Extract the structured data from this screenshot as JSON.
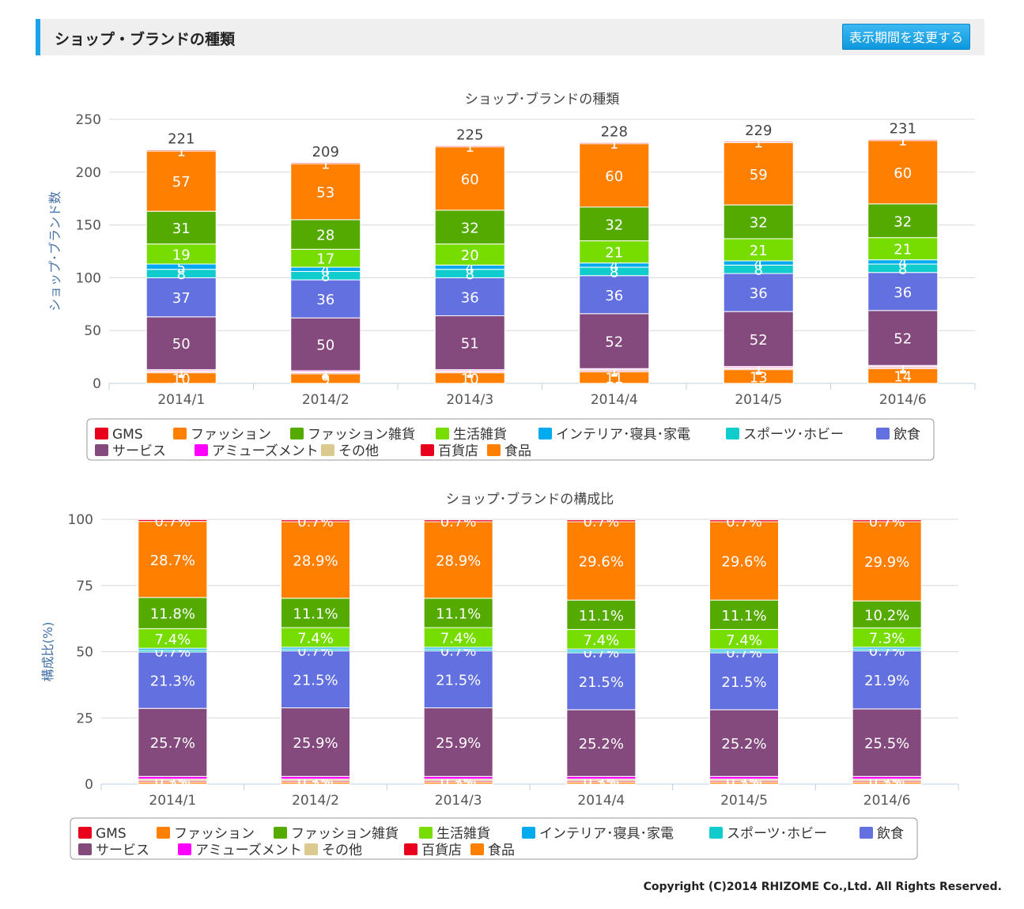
{
  "header": {
    "title": "ショップ・ブランドの種類",
    "period_button": "表示期間を変更する"
  },
  "legend": [
    {
      "name": "GMS",
      "color": "#e8001c"
    },
    {
      "name": "ファッション",
      "color": "#ff8000"
    },
    {
      "name": "ファッション雑貨",
      "color": "#55aa00"
    },
    {
      "name": "生活雑貨",
      "color": "#77dd00"
    },
    {
      "name": "インテリア･寝具･家電",
      "color": "#00aaee"
    },
    {
      "name": "スポーツ･ホビー",
      "color": "#11cccc"
    },
    {
      "name": "飲食",
      "color": "#6270e0"
    },
    {
      "name": "サービス",
      "color": "#844a7d"
    },
    {
      "name": "アミューズメント",
      "color": "#ff00ff"
    },
    {
      "name": "その他",
      "color": "#dcc990"
    },
    {
      "name": "百貨店",
      "color": "#e8001c"
    },
    {
      "name": "食品",
      "color": "#ff8000"
    }
  ],
  "chart_data": [
    {
      "type": "bar",
      "stacked": true,
      "title": "ショップ･ブランドの種類",
      "ylabel": "ショップ･ブランド数",
      "ylim": [
        0,
        250
      ],
      "yticks": [
        "0",
        "50",
        "100",
        "150",
        "200",
        "250"
      ],
      "categories": [
        "2014/1",
        "2014/2",
        "2014/3",
        "2014/4",
        "2014/5",
        "2014/6"
      ],
      "totals": [
        "221",
        "209",
        "225",
        "228",
        "229",
        "231"
      ],
      "series": [
        {
          "name": "食品",
          "values": [
            10,
            9,
            10,
            11,
            13,
            14
          ],
          "labels": [
            "10",
            "9",
            "10",
            "11",
            "13",
            "14"
          ]
        },
        {
          "name": "百貨店",
          "values": [
            1,
            1,
            1,
            1,
            1,
            1
          ],
          "labels": [
            "1",
            "1",
            "1",
            "1",
            "1",
            "1"
          ]
        },
        {
          "name": "その他",
          "values": [
            1,
            1,
            1,
            1,
            1,
            1
          ],
          "labels": [
            "1",
            "1",
            "1",
            "1",
            "1",
            "1"
          ]
        },
        {
          "name": "アミューズメント",
          "values": [
            1,
            1,
            1,
            1,
            1,
            1
          ],
          "labels": [
            "1",
            "1",
            "1",
            "1",
            "1",
            "1"
          ]
        },
        {
          "name": "サービス",
          "values": [
            50,
            50,
            51,
            52,
            52,
            52
          ],
          "labels": [
            "50",
            "50",
            "51",
            "52",
            "52",
            "52"
          ]
        },
        {
          "name": "飲食",
          "values": [
            37,
            36,
            36,
            36,
            36,
            36
          ],
          "labels": [
            "37",
            "36",
            "36",
            "36",
            "36",
            "36"
          ]
        },
        {
          "name": "スポーツ･ホビー",
          "values": [
            8,
            8,
            8,
            8,
            8,
            8
          ],
          "labels": [
            "8",
            "8",
            "8",
            "8",
            "8",
            "8"
          ]
        },
        {
          "name": "インテリア･寝具･家電",
          "values": [
            5,
            4,
            4,
            4,
            4,
            4
          ],
          "labels": [
            "5",
            "4",
            "4",
            "4",
            "4",
            "4"
          ]
        },
        {
          "name": "生活雑貨",
          "values": [
            19,
            17,
            20,
            21,
            21,
            21
          ],
          "labels": [
            "19",
            "17",
            "20",
            "21",
            "21",
            "21"
          ]
        },
        {
          "name": "ファッション雑貨",
          "values": [
            31,
            28,
            32,
            32,
            32,
            32
          ],
          "labels": [
            "31",
            "28",
            "32",
            "32",
            "32",
            "32"
          ]
        },
        {
          "name": "ファッション",
          "values": [
            57,
            53,
            60,
            60,
            59,
            60
          ],
          "labels": [
            "57",
            "53",
            "60",
            "60",
            "59",
            "60"
          ]
        },
        {
          "name": "GMS",
          "values": [
            1,
            1,
            1,
            1,
            1,
            1
          ],
          "labels": [
            "1",
            "1",
            "1",
            "1",
            "1",
            "1"
          ]
        }
      ]
    },
    {
      "type": "bar",
      "stacked": true,
      "title": "ショップ･ブランドの構成比",
      "ylabel": "構成比(%)",
      "ylim": [
        0,
        100
      ],
      "yticks": [
        "0",
        "25",
        "50",
        "75",
        "100"
      ],
      "categories": [
        "2014/1",
        "2014/2",
        "2014/3",
        "2014/4",
        "2014/5",
        "2014/6"
      ],
      "series": [
        {
          "name": "食品",
          "values": [
            0.7,
            0.7,
            0.7,
            0.7,
            0.7,
            0.7
          ],
          "labels": [
            "",
            "",
            "",
            "",
            "",
            ""
          ]
        },
        {
          "name": "百貨店",
          "values": [
            0.5,
            0.5,
            0.5,
            0.5,
            0.5,
            0.5
          ],
          "labels": [
            "0.5%",
            "0.5%",
            "0.5%",
            "0.5%",
            "0.5%",
            "0.5%"
          ]
        },
        {
          "name": "その他",
          "values": [
            0.7,
            0.7,
            0.7,
            0.7,
            0.7,
            0.7
          ],
          "labels": [
            "0.7%",
            "0.7%",
            "0.7%",
            "0.7%",
            "0.7%",
            "0.7%"
          ]
        },
        {
          "name": "アミューズメント",
          "values": [
            1.0,
            1.0,
            1.0,
            1.0,
            1.0,
            1.0
          ],
          "labels": [
            "",
            "",
            "",
            "",
            "",
            ""
          ]
        },
        {
          "name": "サービス",
          "values": [
            25.7,
            25.9,
            25.9,
            25.2,
            25.2,
            25.5
          ],
          "labels": [
            "25.7%",
            "25.9%",
            "25.9%",
            "25.2%",
            "25.2%",
            "25.5%"
          ]
        },
        {
          "name": "飲食",
          "values": [
            21.3,
            21.5,
            21.5,
            21.5,
            21.5,
            21.9
          ],
          "labels": [
            "21.3%",
            "21.5%",
            "21.5%",
            "21.5%",
            "21.5%",
            "21.9%"
          ]
        },
        {
          "name": "スポーツ･ホビー",
          "values": [
            0.7,
            0.7,
            0.7,
            0.7,
            0.7,
            0.7
          ],
          "labels": [
            "0.7%",
            "0.7%",
            "0.7%",
            "0.7%",
            "0.7%",
            "0.7%"
          ]
        },
        {
          "name": "インテリア･寝具･家電",
          "values": [
            0.7,
            0.7,
            0.7,
            0.7,
            0.7,
            0.7
          ],
          "labels": [
            "",
            "",
            "",
            "",
            "",
            ""
          ]
        },
        {
          "name": "生活雑貨",
          "values": [
            7.4,
            7.4,
            7.4,
            7.4,
            7.4,
            7.3
          ],
          "labels": [
            "7.4%",
            "7.4%",
            "7.4%",
            "7.4%",
            "7.4%",
            "7.3%"
          ]
        },
        {
          "name": "ファッション雑貨",
          "values": [
            11.8,
            11.1,
            11.1,
            11.1,
            11.1,
            10.2
          ],
          "labels": [
            "11.8%",
            "11.1%",
            "11.1%",
            "11.1%",
            "11.1%",
            "10.2%"
          ]
        },
        {
          "name": "ファッション",
          "values": [
            28.7,
            28.9,
            28.9,
            29.6,
            29.6,
            29.9
          ],
          "labels": [
            "28.7%",
            "28.9%",
            "28.9%",
            "29.6%",
            "29.6%",
            "29.9%"
          ]
        },
        {
          "name": "GMS",
          "values": [
            0.7,
            0.7,
            0.7,
            0.7,
            0.7,
            0.7
          ],
          "labels": [
            "0.7%",
            "0.7%",
            "0.7%",
            "0.7%",
            "0.7%",
            "0.7%"
          ]
        }
      ]
    }
  ],
  "footer": {
    "copyright": "Copyright (C)2014 RHIZOME Co.,Ltd. All Rights Reserved."
  }
}
